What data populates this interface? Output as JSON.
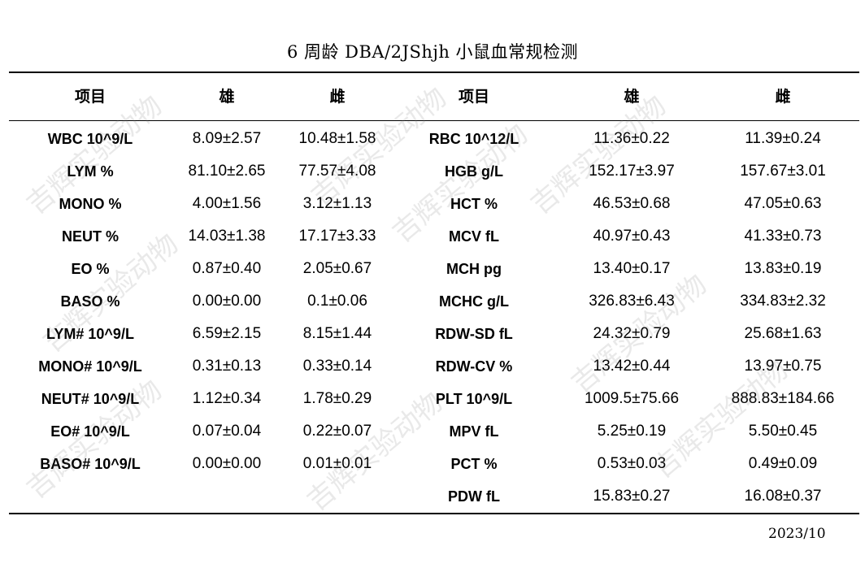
{
  "title": "6 周龄 DBA/2JShjh 小鼠血常规检测",
  "headers": {
    "item_left": "项目",
    "male_left": "雄",
    "female_left": "雌",
    "item_right": "项目",
    "male_right": "雄",
    "female_right": "雌"
  },
  "left_rows": [
    {
      "item": "WBC 10^9/L",
      "male": "8.09±2.57",
      "female": "10.48±1.58"
    },
    {
      "item": "LYM %",
      "male": "81.10±2.65",
      "female": "77.57±4.08"
    },
    {
      "item": "MONO %",
      "male": "4.00±1.56",
      "female": "3.12±1.13"
    },
    {
      "item": "NEUT %",
      "male": "14.03±1.38",
      "female": "17.17±3.33"
    },
    {
      "item": "EO %",
      "male": "0.87±0.40",
      "female": "2.05±0.67"
    },
    {
      "item": "BASO %",
      "male": "0.00±0.00",
      "female": "0.1±0.06"
    },
    {
      "item": "LYM# 10^9/L",
      "male": "6.59±2.15",
      "female": "8.15±1.44"
    },
    {
      "item": "MONO# 10^9/L",
      "male": "0.31±0.13",
      "female": "0.33±0.14"
    },
    {
      "item": "NEUT# 10^9/L",
      "male": "1.12±0.34",
      "female": "1.78±0.29"
    },
    {
      "item": "EO# 10^9/L",
      "male": "0.07±0.04",
      "female": "0.22±0.07"
    },
    {
      "item": "BASO# 10^9/L",
      "male": "0.00±0.00",
      "female": "0.01±0.01"
    }
  ],
  "right_rows": [
    {
      "item": "RBC 10^12/L",
      "male": "11.36±0.22",
      "female": "11.39±0.24"
    },
    {
      "item": "HGB g/L",
      "male": "152.17±3.97",
      "female": "157.67±3.01"
    },
    {
      "item": "HCT %",
      "male": "46.53±0.68",
      "female": "47.05±0.63"
    },
    {
      "item": "MCV fL",
      "male": "40.97±0.43",
      "female": "41.33±0.73"
    },
    {
      "item": "MCH pg",
      "male": "13.40±0.17",
      "female": "13.83±0.19"
    },
    {
      "item": "MCHC g/L",
      "male": "326.83±6.43",
      "female": "334.83±2.32"
    },
    {
      "item": "RDW-SD fL",
      "male": "24.32±0.79",
      "female": "25.68±1.63"
    },
    {
      "item": "RDW-CV %",
      "male": "13.42±0.44",
      "female": "13.97±0.75"
    },
    {
      "item": "PLT 10^9/L",
      "male": "1009.5±75.66",
      "female": "888.83±184.66"
    },
    {
      "item": "MPV fL",
      "male": "5.25±0.19",
      "female": "5.50±0.45"
    },
    {
      "item": "PCT %",
      "male": "0.53±0.03",
      "female": "0.49±0.09"
    },
    {
      "item": "PDW fL",
      "male": "15.83±0.27",
      "female": "16.08±0.37"
    }
  ],
  "date": "2023/10",
  "watermark": "吉辉实验动物"
}
